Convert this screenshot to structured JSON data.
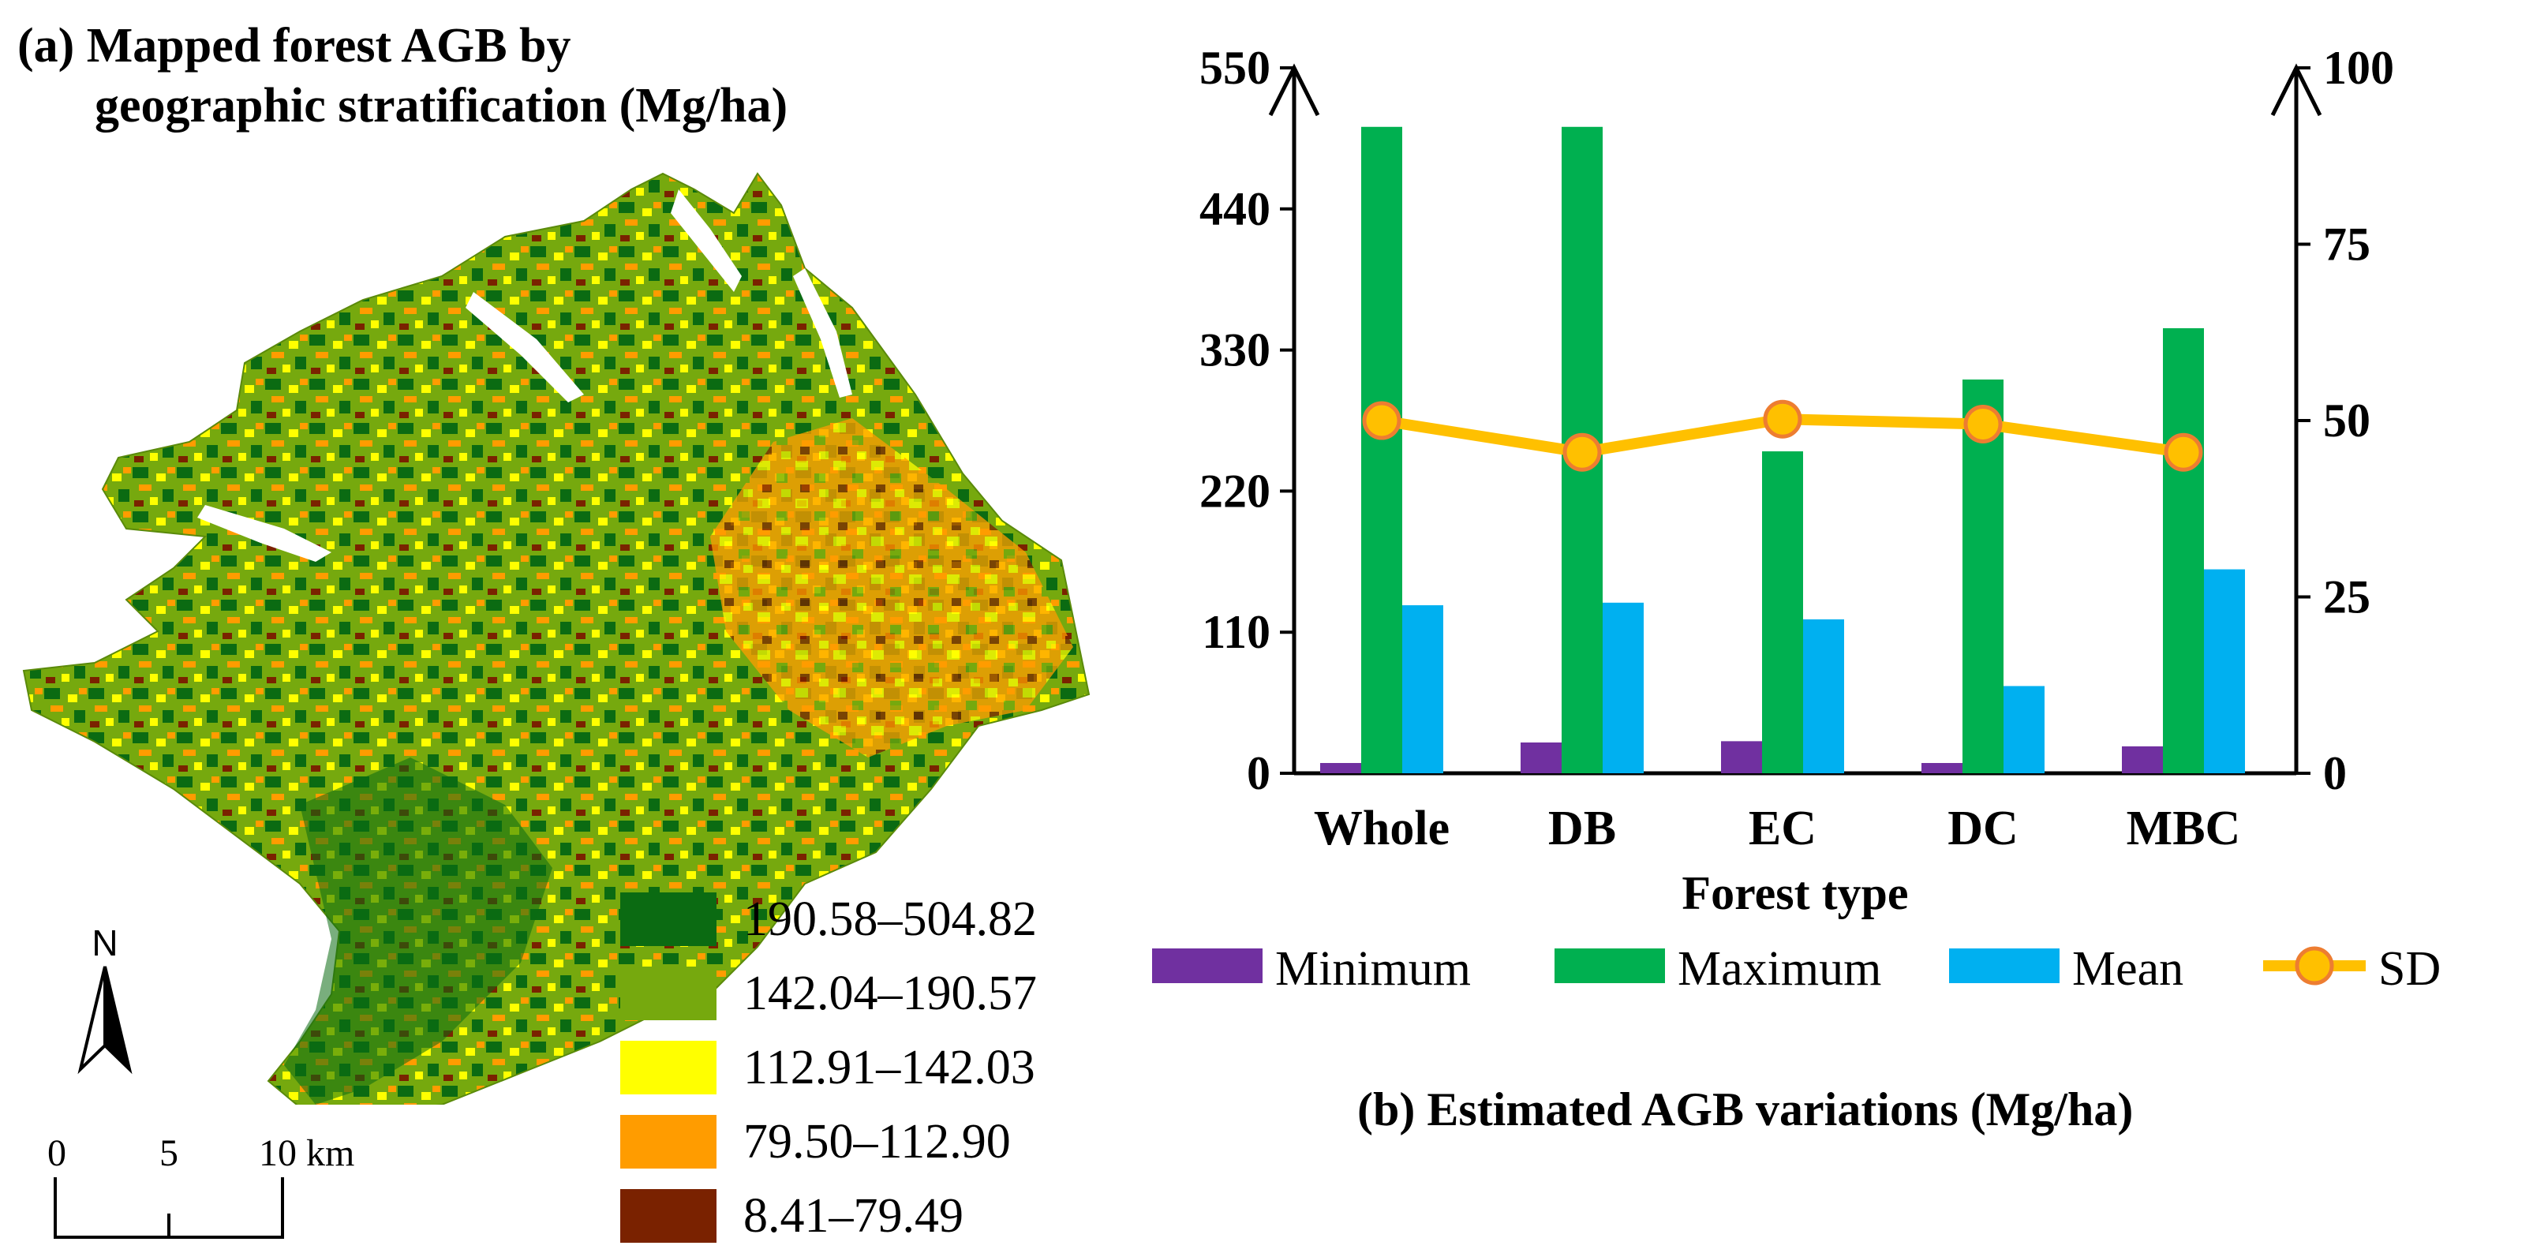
{
  "panel_a": {
    "title_line1": "(a) Mapped forest AGB by",
    "title_line2": "geographic stratification (Mg/ha)",
    "legend": [
      {
        "label": "190.58–504.82",
        "color": "#0b6b12"
      },
      {
        "label": "142.04–190.57",
        "color": "#76a90e"
      },
      {
        "label": "112.91–142.03",
        "color": "#ffff00"
      },
      {
        "label": "79.50–112.90",
        "color": "#ff9c00"
      },
      {
        "label": "8.41–79.49",
        "color": "#7a2200"
      }
    ],
    "north_label": "N",
    "scale_labels": [
      "0",
      "5",
      "10 km"
    ]
  },
  "panel_b_title": "(b) Estimated AGB variations (Mg/ha)",
  "colors": {
    "minimum": "#7030a0",
    "maximum": "#00b050",
    "mean": "#00b0f0",
    "sd_line": "#ffc000",
    "sd_marker_edge": "#ed7d31"
  },
  "chart_data": {
    "type": "bar",
    "title": "(b) Estimated AGB variations (Mg/ha)",
    "xlabel": "Forest type",
    "ylabel": "",
    "categories": [
      "Whole",
      "DB",
      "EC",
      "DC",
      "MBC"
    ],
    "ylim": [
      0,
      550
    ],
    "yticks": [
      "0",
      "110",
      "220",
      "330",
      "440",
      "550"
    ],
    "y2lim": [
      0,
      100
    ],
    "y2ticks": [
      "0",
      "25",
      "50",
      "75",
      "100"
    ],
    "series": [
      {
        "name": "Minimum",
        "type": "bar",
        "axis": "left",
        "values": [
          8,
          24,
          25,
          8,
          21
        ]
      },
      {
        "name": "Maximum",
        "type": "bar",
        "axis": "left",
        "values": [
          504,
          504,
          251,
          307,
          347
        ]
      },
      {
        "name": "Mean",
        "type": "bar",
        "axis": "left",
        "values": [
          131,
          133,
          120,
          68,
          159
        ]
      },
      {
        "name": "SD",
        "type": "line",
        "axis": "right",
        "values": [
          50,
          45.5,
          50.2,
          49.5,
          45.5
        ]
      }
    ],
    "legend": [
      "Minimum",
      "Maximum",
      "Mean",
      "SD"
    ],
    "legend_position": "bottom",
    "grid": false
  }
}
